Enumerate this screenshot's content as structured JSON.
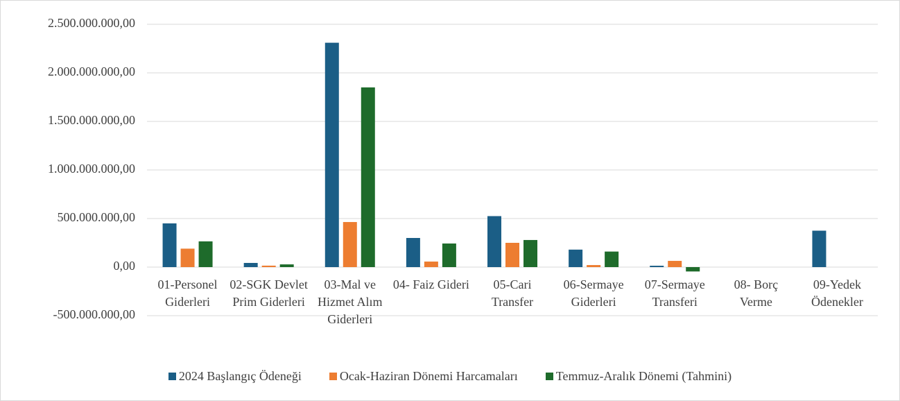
{
  "chart_data": {
    "type": "bar",
    "categories": [
      "01-Personel Giderleri",
      "02-SGK Devlet Prim Giderleri",
      "03-Mal ve Hizmet Alım Giderleri",
      "04- Faiz Gideri",
      "05-Cari Transfer",
      "06-Sermaye Giderleri",
      "07-Sermaye Transferi",
      "08- Borç Verme",
      "09-Yedek Ödenekler"
    ],
    "series": [
      {
        "name": "2024 Başlangıç Ödeneği",
        "color": "#1b5e86",
        "values": [
          450000000,
          43000000,
          2310000000,
          300000000,
          525000000,
          180000000,
          14000000,
          0,
          375000000
        ]
      },
      {
        "name": "Ocak-Haziran Dönemi Harcamaları",
        "color": "#ed7d31",
        "values": [
          190000000,
          15000000,
          464000000,
          57000000,
          250000000,
          21000000,
          64000000,
          0,
          0
        ]
      },
      {
        "name": "Temmuz-Aralık Dönemi (Tahmini)",
        "color": "#1e6b2b",
        "values": [
          265000000,
          28000000,
          1850000000,
          243000000,
          279000000,
          160000000,
          -45000000,
          0,
          0
        ]
      }
    ],
    "ylim": [
      -500000000,
      2500000000
    ],
    "yticks": [
      {
        "value": -500000000,
        "label": "-500.000.000,00"
      },
      {
        "value": 0,
        "label": "0,00"
      },
      {
        "value": 500000000,
        "label": "500.000.000,00"
      },
      {
        "value": 1000000000,
        "label": "1.000.000.000,00"
      },
      {
        "value": 1500000000,
        "label": "1.500.000.000,00"
      },
      {
        "value": 2000000000,
        "label": "2.000.000.000,00"
      },
      {
        "value": 2500000000,
        "label": "2.500.000.000,00"
      }
    ],
    "grid": true,
    "legend": "bottom"
  }
}
